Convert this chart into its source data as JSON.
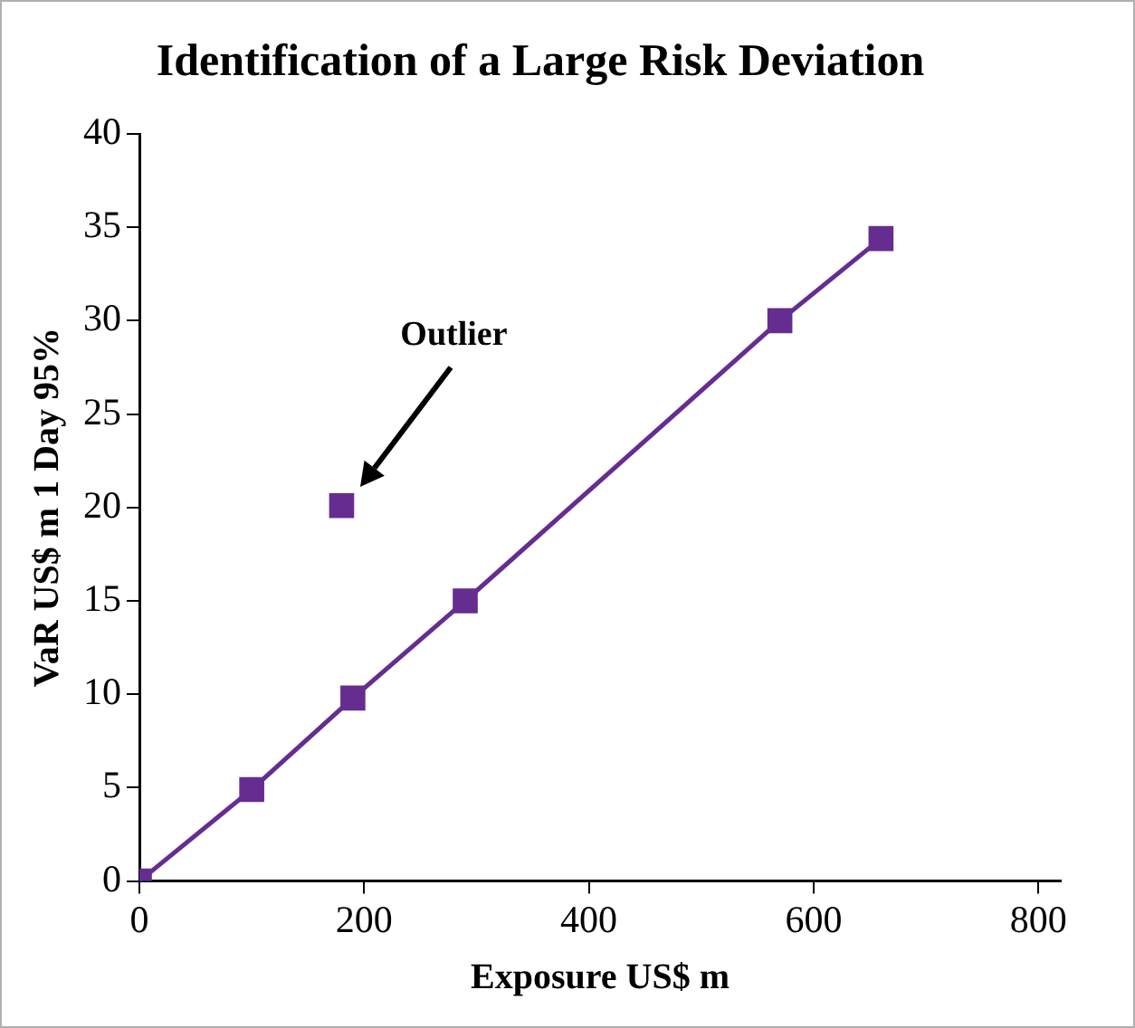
{
  "chart_data": {
    "type": "line",
    "title": "Identification of a Large Risk Deviation",
    "xlabel": "Exposure US$ m",
    "ylabel": "VaR US$ m 1 Day 95%",
    "xlim": [
      0,
      820
    ],
    "xticks": [
      0,
      200,
      400,
      600,
      800
    ],
    "ylim": [
      0,
      40
    ],
    "yticks": [
      0,
      5,
      10,
      15,
      20,
      25,
      30,
      35,
      40
    ],
    "grid": false,
    "legend": false,
    "marker": "square",
    "line_style": "solid",
    "annotations": [
      "Outlier"
    ],
    "series": [
      {
        "color": "#662d91",
        "x": [
          0,
          100,
          190,
          290,
          570,
          660
        ],
        "values": [
          0,
          4.9,
          9.8,
          15,
          30,
          34.4
        ]
      },
      {
        "type": "scatter",
        "color": "#662d91",
        "x": [
          180
        ],
        "values": [
          20.1
        ]
      }
    ]
  }
}
